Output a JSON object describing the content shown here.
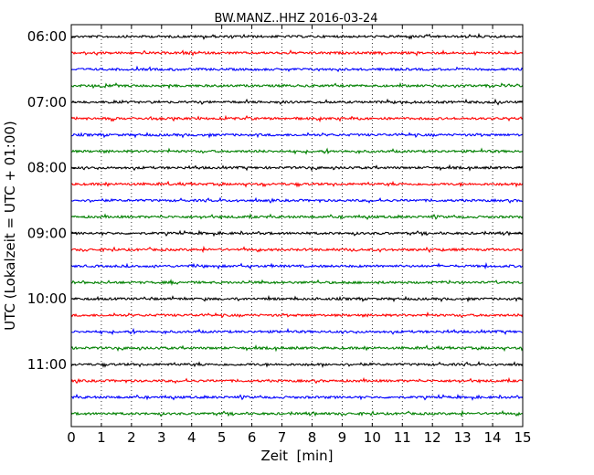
{
  "chart_data": {
    "type": "line",
    "title": "BW.MANZ..HHZ 2016-03-24",
    "xlabel": "Zeit  [min]",
    "ylabel": "UTC (Lokalzeit = UTC + 01:00)",
    "xlim": [
      0,
      15
    ],
    "x_ticks": [
      0,
      1,
      2,
      3,
      4,
      5,
      6,
      7,
      8,
      9,
      10,
      11,
      12,
      13,
      14,
      15
    ],
    "x_tick_labels": [
      "0",
      "1",
      "2",
      "3",
      "4",
      "5",
      "6",
      "7",
      "8",
      "9",
      "10",
      "11",
      "12",
      "13",
      "14",
      "15"
    ],
    "y_tick_labels": [
      "06:00",
      "07:00",
      "08:00",
      "09:00",
      "10:00",
      "11:00"
    ],
    "y_tick_row_index": [
      0,
      4,
      8,
      12,
      16,
      20
    ],
    "rows_per_hour": 4,
    "minutes_per_row": 15,
    "row_count": 24,
    "color_cycle": [
      "#000000",
      "#ff0000",
      "#0000ff",
      "#008000"
    ],
    "grid": {
      "x": true,
      "y": false,
      "style": "dotted"
    },
    "series_description": "Seismogram traces, one per 15 minutes from 06:00 to 11:45 UTC"
  }
}
